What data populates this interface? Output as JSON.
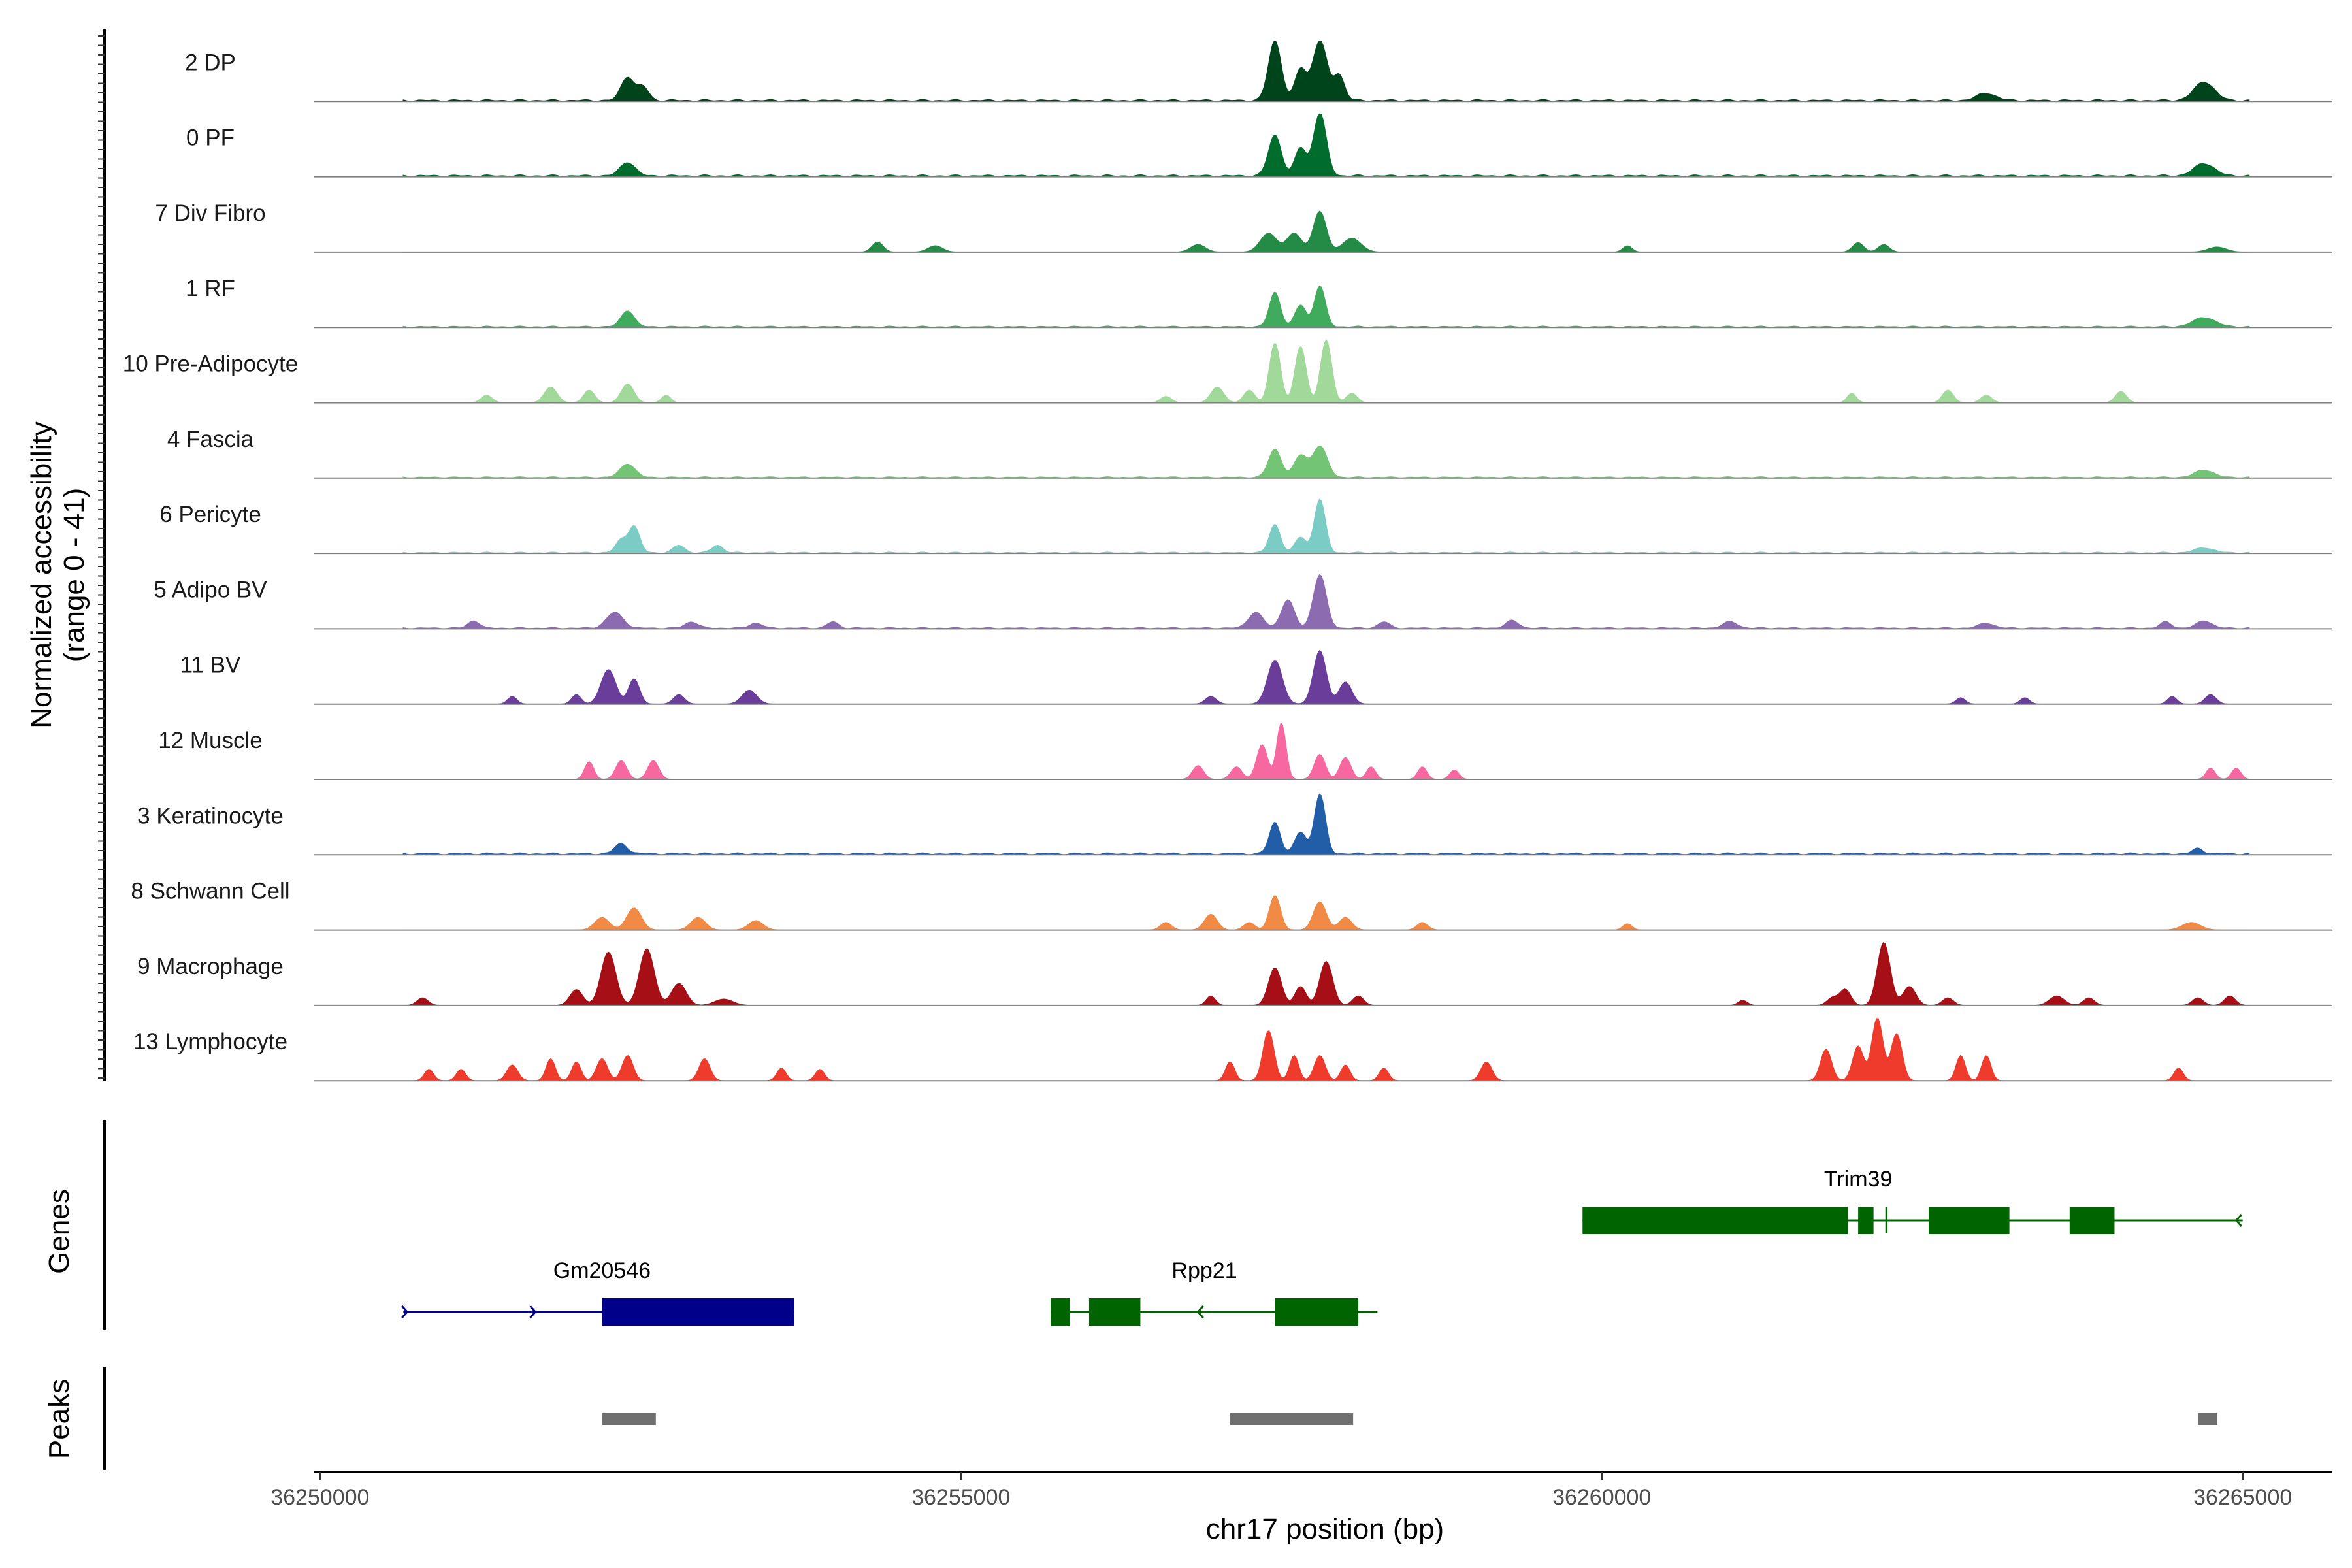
{
  "chart_data": {
    "type": "area",
    "chromosome": "chr17",
    "xlabel": "chr17 position (bp)",
    "ylabel_line1": "Normalized accessibility",
    "ylabel_line2": "(range 0 - 41)",
    "y_range": [
      0,
      41
    ],
    "xlim": [
      36249950,
      36265700
    ],
    "x_ticks": [
      36250000,
      36255000,
      36260000,
      36265000
    ],
    "x_tick_labels": [
      "36250000",
      "36255000",
      "36260000",
      "36265000"
    ],
    "tracks": [
      {
        "name": "2 DP",
        "color": "#00441b",
        "peaks": [
          [
            36252400,
            0.38,
            70
          ],
          [
            36252520,
            0.22,
            60
          ],
          [
            36257450,
            0.95,
            70
          ],
          [
            36257650,
            0.5,
            60
          ],
          [
            36257800,
            0.95,
            80
          ],
          [
            36257950,
            0.4,
            60
          ],
          [
            36263000,
            0.12,
            100
          ],
          [
            36264700,
            0.3,
            110
          ]
        ],
        "baseline": 0.03
      },
      {
        "name": "0 PF",
        "color": "#006d2c",
        "peaks": [
          [
            36252400,
            0.22,
            80
          ],
          [
            36257450,
            0.65,
            70
          ],
          [
            36257650,
            0.45,
            60
          ],
          [
            36257800,
            1.0,
            70
          ],
          [
            36264700,
            0.2,
            110
          ]
        ],
        "baseline": 0.03
      },
      {
        "name": "7 Div Fibro",
        "color": "#238b45",
        "peaks": [
          [
            36254350,
            0.16,
            60
          ],
          [
            36254800,
            0.1,
            80
          ],
          [
            36256850,
            0.12,
            80
          ],
          [
            36257400,
            0.3,
            90
          ],
          [
            36257600,
            0.3,
            80
          ],
          [
            36257800,
            0.65,
            70
          ],
          [
            36258050,
            0.22,
            100
          ],
          [
            36260200,
            0.1,
            50
          ],
          [
            36262000,
            0.15,
            60
          ],
          [
            36262200,
            0.12,
            60
          ],
          [
            36264800,
            0.08,
            100
          ]
        ],
        "baseline": 0.0
      },
      {
        "name": "1 RF",
        "color": "#41ab5d",
        "peaks": [
          [
            36252400,
            0.26,
            70
          ],
          [
            36257450,
            0.55,
            60
          ],
          [
            36257650,
            0.35,
            60
          ],
          [
            36257800,
            0.65,
            60
          ],
          [
            36264700,
            0.15,
            120
          ]
        ],
        "baseline": 0.02
      },
      {
        "name": "10 Pre-Adipocyte",
        "color": "#a1d99b",
        "peaks": [
          [
            36251300,
            0.12,
            60
          ],
          [
            36251800,
            0.25,
            70
          ],
          [
            36252100,
            0.2,
            60
          ],
          [
            36252400,
            0.3,
            70
          ],
          [
            36252700,
            0.12,
            50
          ],
          [
            36256600,
            0.1,
            60
          ],
          [
            36257000,
            0.25,
            70
          ],
          [
            36257250,
            0.2,
            60
          ],
          [
            36257450,
            0.95,
            60
          ],
          [
            36257650,
            0.9,
            60
          ],
          [
            36257850,
            1.0,
            60
          ],
          [
            36258050,
            0.15,
            60
          ],
          [
            36261950,
            0.15,
            50
          ],
          [
            36262700,
            0.2,
            60
          ],
          [
            36263000,
            0.12,
            60
          ],
          [
            36264050,
            0.18,
            60
          ]
        ],
        "baseline": 0.0
      },
      {
        "name": "4 Fascia",
        "color": "#74c476",
        "peaks": [
          [
            36252400,
            0.22,
            80
          ],
          [
            36257450,
            0.45,
            70
          ],
          [
            36257650,
            0.35,
            70
          ],
          [
            36257800,
            0.5,
            80
          ],
          [
            36264700,
            0.12,
            100
          ]
        ],
        "baseline": 0.02
      },
      {
        "name": "6 Pericyte",
        "color": "#7bccc4",
        "peaks": [
          [
            36252350,
            0.2,
            60
          ],
          [
            36252450,
            0.42,
            60
          ],
          [
            36252800,
            0.12,
            60
          ],
          [
            36253100,
            0.12,
            60
          ],
          [
            36257450,
            0.45,
            60
          ],
          [
            36257650,
            0.25,
            60
          ],
          [
            36257800,
            0.85,
            60
          ],
          [
            36264700,
            0.08,
            100
          ]
        ],
        "baseline": 0.02
      },
      {
        "name": "5 Adipo BV",
        "color": "#8c6bb1",
        "peaks": [
          [
            36251200,
            0.12,
            60
          ],
          [
            36252300,
            0.25,
            90
          ],
          [
            36252900,
            0.1,
            70
          ],
          [
            36253400,
            0.08,
            70
          ],
          [
            36254000,
            0.1,
            60
          ],
          [
            36257300,
            0.25,
            80
          ],
          [
            36257550,
            0.45,
            70
          ],
          [
            36257800,
            0.85,
            70
          ],
          [
            36258300,
            0.1,
            60
          ],
          [
            36259300,
            0.12,
            70
          ],
          [
            36261000,
            0.1,
            80
          ],
          [
            36263000,
            0.08,
            80
          ],
          [
            36264400,
            0.1,
            60
          ],
          [
            36264700,
            0.12,
            80
          ]
        ],
        "baseline": 0.02
      },
      {
        "name": "11 BV",
        "color": "#6a3d9a",
        "peaks": [
          [
            36251500,
            0.12,
            50
          ],
          [
            36252000,
            0.15,
            50
          ],
          [
            36252250,
            0.55,
            80
          ],
          [
            36252450,
            0.4,
            60
          ],
          [
            36252800,
            0.15,
            60
          ],
          [
            36253350,
            0.22,
            80
          ],
          [
            36256950,
            0.12,
            60
          ],
          [
            36257450,
            0.7,
            80
          ],
          [
            36257800,
            0.85,
            70
          ],
          [
            36258000,
            0.35,
            70
          ],
          [
            36262800,
            0.1,
            50
          ],
          [
            36263300,
            0.1,
            50
          ],
          [
            36264450,
            0.12,
            50
          ],
          [
            36264750,
            0.15,
            60
          ]
        ],
        "baseline": 0.0
      },
      {
        "name": "12 Muscle",
        "color": "#f768a1",
        "peaks": [
          [
            36252100,
            0.28,
            50
          ],
          [
            36252350,
            0.3,
            60
          ],
          [
            36252600,
            0.3,
            60
          ],
          [
            36256850,
            0.22,
            60
          ],
          [
            36257150,
            0.2,
            60
          ],
          [
            36257350,
            0.55,
            60
          ],
          [
            36257500,
            0.9,
            50
          ],
          [
            36257800,
            0.4,
            60
          ],
          [
            36258000,
            0.35,
            60
          ],
          [
            36258200,
            0.2,
            50
          ],
          [
            36258600,
            0.2,
            50
          ],
          [
            36258850,
            0.15,
            50
          ],
          [
            36264750,
            0.18,
            50
          ],
          [
            36264950,
            0.18,
            50
          ]
        ],
        "baseline": 0.0
      },
      {
        "name": "3 Keratinocyte",
        "color": "#225ea8",
        "peaks": [
          [
            36252350,
            0.16,
            70
          ],
          [
            36257450,
            0.5,
            60
          ],
          [
            36257650,
            0.35,
            60
          ],
          [
            36257800,
            0.95,
            60
          ],
          [
            36264650,
            0.08,
            60
          ]
        ],
        "baseline": 0.03
      },
      {
        "name": "8 Schwann Cell",
        "color": "#f08a45",
        "peaks": [
          [
            36252200,
            0.2,
            80
          ],
          [
            36252450,
            0.35,
            80
          ],
          [
            36252950,
            0.2,
            80
          ],
          [
            36253400,
            0.15,
            80
          ],
          [
            36256600,
            0.12,
            60
          ],
          [
            36256950,
            0.25,
            70
          ],
          [
            36257250,
            0.12,
            60
          ],
          [
            36257450,
            0.55,
            60
          ],
          [
            36257800,
            0.45,
            70
          ],
          [
            36258000,
            0.2,
            70
          ],
          [
            36258600,
            0.12,
            60
          ],
          [
            36260200,
            0.1,
            50
          ],
          [
            36264600,
            0.12,
            100
          ]
        ],
        "baseline": 0.0
      },
      {
        "name": "9 Macrophage",
        "color": "#a50f15",
        "peaks": [
          [
            36250800,
            0.12,
            60
          ],
          [
            36252000,
            0.25,
            70
          ],
          [
            36252250,
            0.85,
            80
          ],
          [
            36252550,
            0.9,
            80
          ],
          [
            36252800,
            0.35,
            80
          ],
          [
            36253150,
            0.1,
            100
          ],
          [
            36256950,
            0.15,
            50
          ],
          [
            36257450,
            0.6,
            70
          ],
          [
            36257650,
            0.3,
            60
          ],
          [
            36257850,
            0.7,
            70
          ],
          [
            36258100,
            0.15,
            60
          ],
          [
            36261100,
            0.08,
            50
          ],
          [
            36261800,
            0.12,
            60
          ],
          [
            36261900,
            0.25,
            60
          ],
          [
            36262200,
            1.0,
            70
          ],
          [
            36262400,
            0.3,
            70
          ],
          [
            36262700,
            0.12,
            60
          ],
          [
            36263550,
            0.15,
            80
          ],
          [
            36263800,
            0.12,
            60
          ],
          [
            36264650,
            0.12,
            60
          ],
          [
            36264900,
            0.15,
            60
          ]
        ],
        "baseline": 0.0
      },
      {
        "name": "13 Lymphocyte",
        "color": "#ef3b2c",
        "peaks": [
          [
            36250850,
            0.18,
            50
          ],
          [
            36251100,
            0.18,
            50
          ],
          [
            36251500,
            0.25,
            60
          ],
          [
            36251800,
            0.35,
            50
          ],
          [
            36252000,
            0.3,
            50
          ],
          [
            36252200,
            0.35,
            60
          ],
          [
            36252400,
            0.4,
            60
          ],
          [
            36253000,
            0.35,
            60
          ],
          [
            36253600,
            0.2,
            50
          ],
          [
            36253900,
            0.18,
            50
          ],
          [
            36257100,
            0.3,
            50
          ],
          [
            36257400,
            0.8,
            60
          ],
          [
            36257600,
            0.4,
            50
          ],
          [
            36257800,
            0.4,
            60
          ],
          [
            36258000,
            0.25,
            50
          ],
          [
            36258300,
            0.2,
            50
          ],
          [
            36259100,
            0.3,
            60
          ],
          [
            36261750,
            0.5,
            60
          ],
          [
            36262000,
            0.55,
            60
          ],
          [
            36262150,
            1.0,
            60
          ],
          [
            36262300,
            0.75,
            60
          ],
          [
            36262800,
            0.4,
            50
          ],
          [
            36263000,
            0.4,
            50
          ],
          [
            36264500,
            0.2,
            50
          ]
        ],
        "baseline": 0.0
      }
    ],
    "genes_track_label": "Genes",
    "peaks_track_label": "Peaks",
    "genes": [
      {
        "name": "Gm20546",
        "strand": "+",
        "start": 36250650,
        "end": 36253700,
        "color": "#00008b",
        "exons": [
          [
            36252200,
            36253700
          ]
        ],
        "row": 2,
        "label_x": 36252200
      },
      {
        "name": "Rpp21",
        "strand": "-",
        "start": 36255700,
        "end": 36258250,
        "color": "#006400",
        "exons": [
          [
            36255700,
            36255850
          ],
          [
            36256000,
            36256400
          ],
          [
            36257450,
            36258100
          ]
        ],
        "row": 2,
        "label_x": 36256900
      },
      {
        "name": "Trim39",
        "strand": "-",
        "start": 36259850,
        "end": 36265000,
        "color": "#006400",
        "exons": [
          [
            36259850,
            36261920
          ],
          [
            36262000,
            36262120
          ],
          [
            36262550,
            36263180
          ],
          [
            36263650,
            36264000
          ]
        ],
        "row": 1,
        "label_x": 36262000
      }
    ],
    "called_peaks": [
      [
        36252200,
        36252620
      ],
      [
        36257100,
        36258060
      ],
      [
        36264650,
        36264800
      ]
    ]
  }
}
